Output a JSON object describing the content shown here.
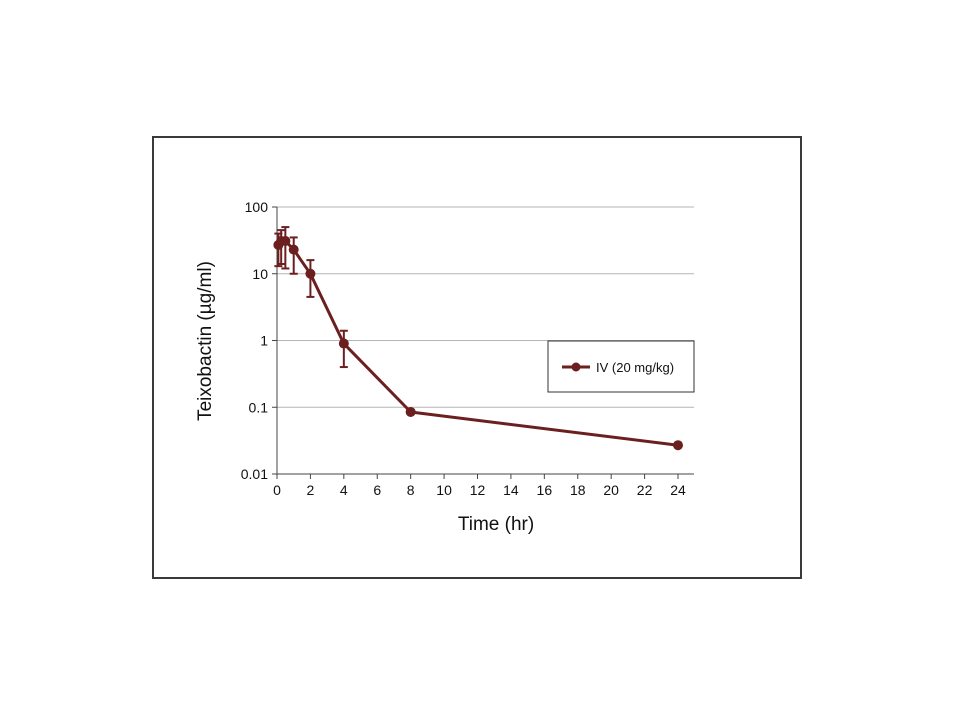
{
  "chart_data": {
    "type": "line",
    "xlabel": "Time (hr)",
    "ylabel": "Teixobactin (µg/ml)",
    "x_scale": "linear",
    "y_scale": "log",
    "xlim": [
      0,
      24
    ],
    "ylim": [
      0.01,
      100
    ],
    "x_ticks": [
      "0",
      "2",
      "4",
      "6",
      "8",
      "10",
      "12",
      "14",
      "16",
      "18",
      "20",
      "22",
      "24"
    ],
    "y_ticks": [
      "100",
      "10",
      "1",
      "0.1",
      "0.01"
    ],
    "grid": "horizontal",
    "legend_position": "right",
    "series": [
      {
        "name": "IV (20 mg/kg)",
        "color": "#6b1f1f",
        "x": [
          0.083,
          0.25,
          0.5,
          1,
          2,
          4,
          8,
          24
        ],
        "y": [
          27,
          31,
          31,
          23,
          10,
          0.9,
          0.085,
          0.027
        ],
        "y_err_low": [
          13,
          14,
          12,
          10,
          4.5,
          0.4,
          null,
          null
        ],
        "y_err_high": [
          40,
          45,
          50,
          35,
          16,
          1.4,
          null,
          null
        ]
      }
    ]
  }
}
